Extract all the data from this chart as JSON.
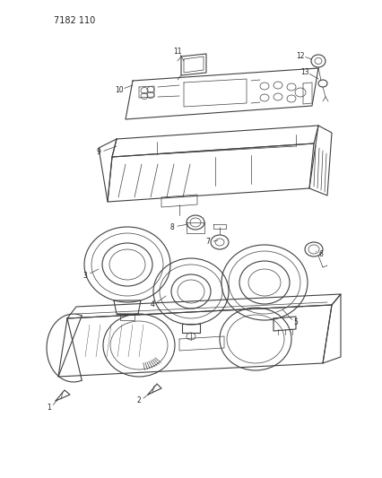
{
  "title": "7182 110",
  "bg_color": "#ffffff",
  "line_color": "#404040",
  "text_color": "#222222",
  "fig_width": 4.27,
  "fig_height": 5.33,
  "dpi": 100
}
